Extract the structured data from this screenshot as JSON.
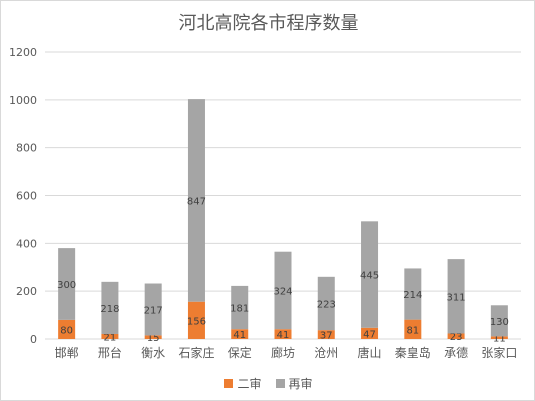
{
  "chart_data": {
    "type": "bar",
    "stacked": true,
    "title": "河北高院各市程序数量",
    "categories": [
      "邯郸",
      "邢台",
      "衡水",
      "石家庄",
      "保定",
      "廊坊",
      "沧州",
      "唐山",
      "秦皇岛",
      "承德",
      "张家口"
    ],
    "series": [
      {
        "name": "二审",
        "color": "#ED7D31",
        "values": [
          80,
          21,
          15,
          156,
          41,
          41,
          37,
          47,
          81,
          23,
          11
        ]
      },
      {
        "name": "再审",
        "color": "#A5A5A5",
        "values": [
          300,
          218,
          217,
          847,
          181,
          324,
          223,
          445,
          214,
          311,
          130
        ]
      }
    ],
    "ylim": [
      0,
      1200
    ],
    "yticks": [
      0,
      200,
      400,
      600,
      800,
      1000,
      1200
    ],
    "grid": true,
    "legend_position": "bottom"
  }
}
